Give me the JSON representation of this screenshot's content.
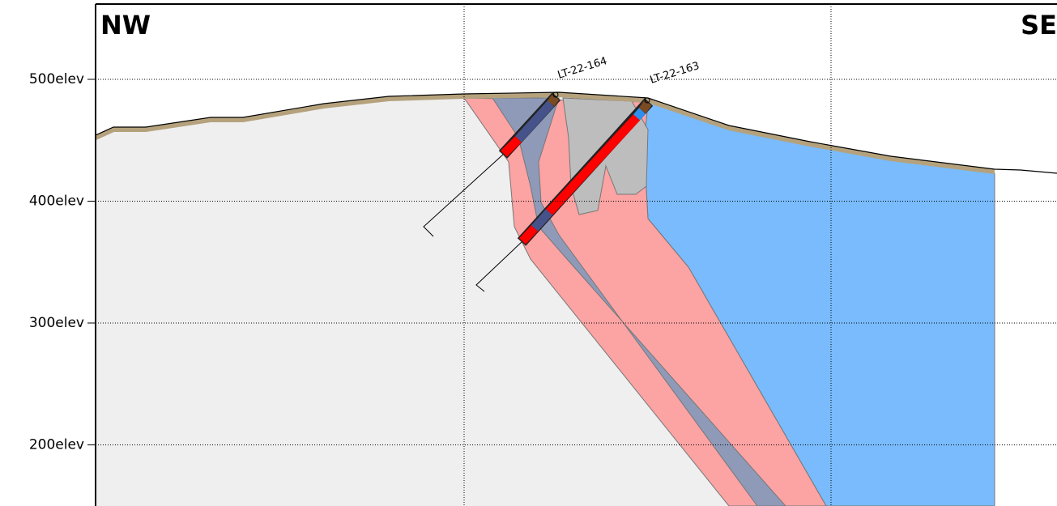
{
  "header": {
    "left": "NW",
    "right": "SE"
  },
  "axis": {
    "ticks": [
      {
        "value": 500,
        "label": "500elev"
      },
      {
        "value": 400,
        "label": "400elev"
      },
      {
        "value": 300,
        "label": "300elev"
      },
      {
        "value": 200,
        "label": "200elev"
      }
    ]
  },
  "drillholes": [
    {
      "label": "LT-22-164"
    },
    {
      "label": "LT-22-163"
    }
  ]
}
